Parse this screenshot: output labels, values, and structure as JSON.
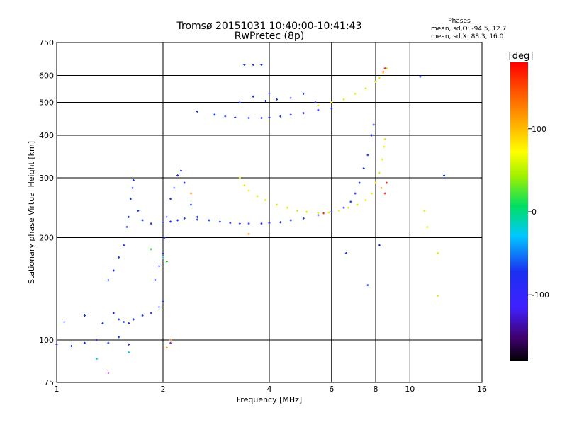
{
  "header": {
    "title": "Tromsø 20151031 10:40:00-10:41:43",
    "subtitle": "RwPretec (8p)",
    "phases_title": "Phases",
    "phases_o": "mean, sd,O: -94.5, 12.7",
    "phases_x": "mean, sd,X:  88.3, 16.0"
  },
  "colorbar": {
    "title": "[deg]",
    "range": [
      -180,
      180
    ],
    "ticks": [
      {
        "value": 100,
        "label": "100"
      },
      {
        "value": 0,
        "label": "0"
      },
      {
        "value": -100,
        "label": "-100"
      }
    ]
  },
  "chart_data": {
    "type": "scatter",
    "xlabel": "Frequency [MHz]",
    "ylabel": "Stationary phase Virtual Height [km]",
    "xscale": "log",
    "yscale": "log",
    "xlim": [
      1,
      16
    ],
    "ylim": [
      75,
      750
    ],
    "xticks": [
      1,
      2,
      4,
      6,
      8,
      10,
      16
    ],
    "yticks": [
      75,
      100,
      200,
      300,
      400,
      500,
      600,
      750
    ],
    "xtick_labels": [
      "1",
      "2",
      "4",
      "6",
      "8",
      "10",
      "16"
    ],
    "ytick_labels": [
      "75",
      "100",
      "200",
      "300",
      "400",
      "500",
      "600",
      "750"
    ],
    "grid": true,
    "series": [
      {
        "color": "#1a30f0",
        "points": [
          [
            1.0,
            97
          ],
          [
            1.1,
            96
          ],
          [
            1.2,
            98
          ],
          [
            1.3,
            100
          ],
          [
            1.4,
            98
          ],
          [
            1.5,
            102
          ],
          [
            1.6,
            97
          ],
          [
            1.05,
            113
          ],
          [
            1.2,
            118
          ],
          [
            1.35,
            112
          ],
          [
            1.45,
            120
          ],
          [
            1.5,
            115
          ],
          [
            1.55,
            113
          ],
          [
            1.6,
            112
          ],
          [
            1.65,
            115
          ],
          [
            1.75,
            118
          ],
          [
            1.85,
            120
          ],
          [
            1.95,
            125
          ],
          [
            2.0,
            130
          ],
          [
            1.4,
            150
          ],
          [
            1.45,
            160
          ],
          [
            1.5,
            175
          ],
          [
            1.55,
            190
          ],
          [
            1.58,
            215
          ],
          [
            1.6,
            230
          ],
          [
            1.62,
            260
          ],
          [
            1.64,
            280
          ],
          [
            1.65,
            295
          ],
          [
            1.7,
            240
          ],
          [
            1.75,
            225
          ],
          [
            1.85,
            220
          ],
          [
            2.0,
            222
          ],
          [
            2.1,
            223
          ],
          [
            2.2,
            225
          ],
          [
            2.3,
            228
          ],
          [
            2.5,
            226
          ],
          [
            2.7,
            225
          ],
          [
            2.9,
            223
          ],
          [
            3.1,
            221
          ],
          [
            3.3,
            220
          ],
          [
            1.9,
            150
          ],
          [
            1.95,
            165
          ],
          [
            2.0,
            180
          ],
          [
            2.02,
            200
          ],
          [
            2.05,
            230
          ],
          [
            2.1,
            260
          ],
          [
            2.15,
            280
          ],
          [
            2.2,
            305
          ],
          [
            2.25,
            315
          ],
          [
            2.3,
            290
          ],
          [
            2.4,
            250
          ],
          [
            2.5,
            230
          ],
          [
            3.5,
            220
          ],
          [
            3.8,
            220
          ],
          [
            4.0,
            221
          ],
          [
            4.3,
            222
          ],
          [
            4.6,
            225
          ],
          [
            5.0,
            228
          ],
          [
            5.5,
            233
          ],
          [
            6.0,
            238
          ],
          [
            6.5,
            245
          ],
          [
            6.8,
            255
          ],
          [
            7.0,
            270
          ],
          [
            7.2,
            290
          ],
          [
            7.4,
            320
          ],
          [
            7.6,
            350
          ],
          [
            7.8,
            400
          ],
          [
            7.9,
            430
          ],
          [
            2.5,
            470
          ],
          [
            2.8,
            460
          ],
          [
            3.0,
            455
          ],
          [
            3.2,
            452
          ],
          [
            3.5,
            450
          ],
          [
            3.8,
            450
          ],
          [
            4.0,
            452
          ],
          [
            4.3,
            455
          ],
          [
            4.6,
            460
          ],
          [
            5.0,
            465
          ],
          [
            5.5,
            475
          ],
          [
            6.0,
            480
          ],
          [
            3.3,
            500
          ],
          [
            3.6,
            520
          ],
          [
            3.9,
            505
          ],
          [
            4.0,
            530
          ],
          [
            4.2,
            510
          ],
          [
            4.6,
            515
          ],
          [
            5.0,
            530
          ],
          [
            5.4,
            500
          ],
          [
            3.4,
            645
          ],
          [
            3.6,
            645
          ],
          [
            3.8,
            645
          ],
          [
            6.6,
            180
          ],
          [
            7.6,
            145
          ],
          [
            8.2,
            190
          ],
          [
            12.5,
            305
          ],
          [
            10.7,
            595
          ]
        ]
      },
      {
        "color": "#e8e800",
        "points": [
          [
            3.3,
            300
          ],
          [
            3.4,
            285
          ],
          [
            3.5,
            275
          ],
          [
            3.7,
            265
          ],
          [
            3.9,
            258
          ],
          [
            4.2,
            250
          ],
          [
            4.5,
            245
          ],
          [
            4.8,
            240
          ],
          [
            5.1,
            238
          ],
          [
            5.5,
            236
          ],
          [
            5.9,
            237
          ],
          [
            6.3,
            240
          ],
          [
            6.7,
            245
          ],
          [
            7.1,
            250
          ],
          [
            7.5,
            258
          ],
          [
            7.8,
            270
          ],
          [
            8.0,
            290
          ],
          [
            8.2,
            310
          ],
          [
            8.35,
            340
          ],
          [
            8.45,
            370
          ],
          [
            8.5,
            390
          ],
          [
            5.5,
            490
          ],
          [
            6.0,
            500
          ],
          [
            6.5,
            510
          ],
          [
            7.0,
            530
          ],
          [
            7.5,
            550
          ],
          [
            8.0,
            575
          ],
          [
            8.2,
            590
          ],
          [
            8.4,
            610
          ],
          [
            8.6,
            630
          ],
          [
            11.0,
            240
          ],
          [
            11.2,
            215
          ],
          [
            12.0,
            180
          ],
          [
            12.0,
            135
          ]
        ]
      },
      {
        "color": "#f03020",
        "points": [
          [
            8.5,
            630
          ],
          [
            8.4,
            615
          ],
          [
            5.7,
            236
          ],
          [
            8.6,
            290
          ],
          [
            8.5,
            270
          ]
        ]
      },
      {
        "color": "#18c8e0",
        "points": [
          [
            1.3,
            88
          ],
          [
            1.6,
            92
          ],
          [
            2.0,
            175
          ]
        ]
      },
      {
        "color": "#20d020",
        "points": [
          [
            1.85,
            185
          ],
          [
            2.05,
            170
          ]
        ]
      },
      {
        "color": "#f09018",
        "points": [
          [
            2.05,
            95
          ],
          [
            2.1,
            100
          ],
          [
            2.4,
            270
          ],
          [
            3.5,
            205
          ],
          [
            8.3,
            280
          ]
        ]
      },
      {
        "color": "#8828c8",
        "points": [
          [
            1.4,
            80
          ],
          [
            2.1,
            98
          ]
        ]
      }
    ]
  }
}
